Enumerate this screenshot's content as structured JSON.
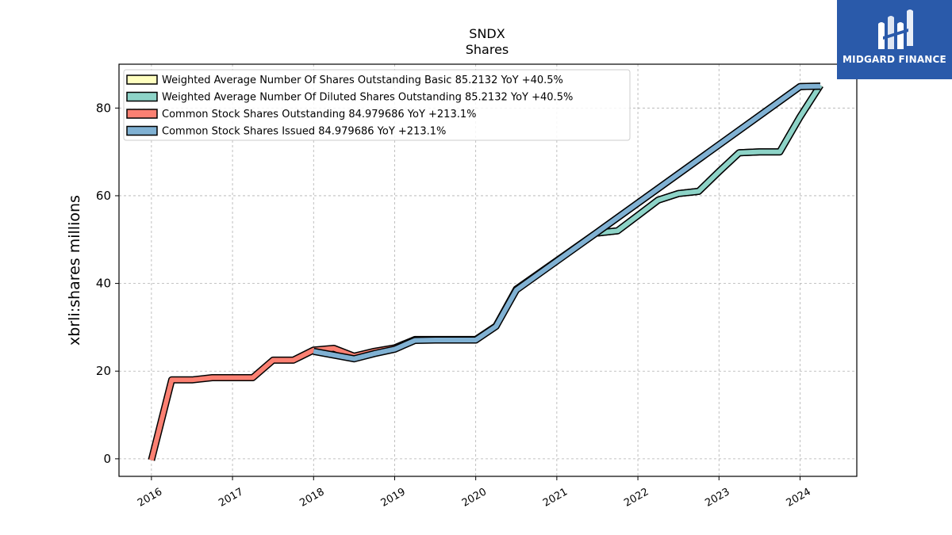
{
  "brand": {
    "name": "MIDGARD FINANCE",
    "logo_color": "#2a5aaa",
    "icon": "midgard-logo-icon"
  },
  "chart_data": {
    "type": "line",
    "title": "SNDX",
    "subtitle": "Shares",
    "xlabel": "",
    "ylabel": "xbrli:shares millions",
    "xlim": [
      2015.6,
      2024.7
    ],
    "ylim": [
      -4,
      90
    ],
    "yticks": [
      0,
      20,
      40,
      60,
      80
    ],
    "xticks": [
      2016,
      2017,
      2018,
      2019,
      2020,
      2021,
      2022,
      2023,
      2024
    ],
    "xtick_labels": [
      "2016",
      "2017",
      "2018",
      "2019",
      "2020",
      "2021",
      "2022",
      "2023",
      "2024"
    ],
    "grid": true,
    "legend_position": "upper-left",
    "series": [
      {
        "name": "Weighted Average Number Of Shares Outstanding Basic",
        "legend_label": "Weighted Average Number Of Shares Outstanding Basic  85.2132 YoY +40.5%",
        "color": "#ffffbf",
        "x": [
          2021.5,
          2021.75,
          2022.0,
          2022.25,
          2022.5,
          2022.75,
          2023.0,
          2023.25,
          2023.5,
          2023.75,
          2024.0,
          2024.25
        ],
        "y": [
          51.5,
          52.0,
          55.5,
          59.0,
          60.5,
          61.0,
          65.5,
          69.8,
          70.0,
          70.0,
          78.0,
          85.2
        ]
      },
      {
        "name": "Weighted Average Number Of Diluted Shares Outstanding",
        "legend_label": "Weighted Average Number Of Diluted Shares Outstanding  85.2132 YoY +40.5%",
        "color": "#8dd3c7",
        "x": [
          2021.5,
          2021.75,
          2022.0,
          2022.25,
          2022.5,
          2022.75,
          2023.0,
          2023.25,
          2023.5,
          2023.75,
          2024.0,
          2024.25
        ],
        "y": [
          51.5,
          52.0,
          55.5,
          59.0,
          60.5,
          61.0,
          65.5,
          69.8,
          70.0,
          70.0,
          78.0,
          85.2
        ]
      },
      {
        "name": "Common Stock Shares Outstanding",
        "legend_label": "Common Stock Shares Outstanding  84.979686 YoY +213.1%",
        "color": "#fb8072",
        "x": [
          2016.0,
          2016.25,
          2016.5,
          2016.75,
          2017.0,
          2017.25,
          2017.5,
          2017.75,
          2018.0,
          2018.25,
          2018.5,
          2018.75,
          2019.0,
          2019.25,
          2019.5,
          2019.75,
          2020.0,
          2020.25,
          2020.5,
          2021.5,
          2024.0,
          2024.25
        ],
        "y": [
          -0.3,
          18.0,
          18.0,
          18.5,
          18.5,
          18.5,
          22.5,
          22.5,
          24.8,
          25.2,
          23.4,
          24.5,
          25.3,
          27.2,
          27.2,
          27.2,
          27.2,
          30.3,
          38.7,
          51.7,
          84.9,
          85.0
        ]
      },
      {
        "name": "Common Stock Shares Issued",
        "legend_label": "Common Stock Shares Issued  84.979686 YoY +213.1%",
        "color": "#80b1d3",
        "x": [
          2018.0,
          2018.5,
          2018.75,
          2019.0,
          2019.25,
          2019.5,
          2019.75,
          2020.0,
          2020.25,
          2020.5,
          2021.5,
          2024.0,
          2024.25
        ],
        "y": [
          24.5,
          22.8,
          24.0,
          25.0,
          27.0,
          27.1,
          27.1,
          27.1,
          30.2,
          38.5,
          51.7,
          84.9,
          85.0
        ]
      }
    ]
  }
}
